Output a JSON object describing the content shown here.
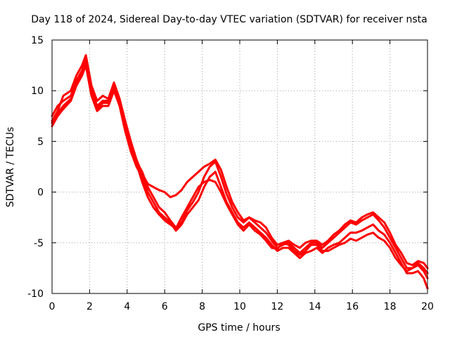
{
  "chart_data": {
    "type": "line",
    "title": "Day 118 of 2024, Sidereal Day-to-day VTEC variation (SDTVAR) for receiver nsta",
    "xlabel": "GPS time / hours",
    "ylabel": "SDTVAR / TECUs",
    "xlim": [
      0,
      20
    ],
    "ylim": [
      -10,
      15
    ],
    "xticks": [
      "0",
      "2",
      "4",
      "6",
      "8",
      "10",
      "12",
      "14",
      "16",
      "18",
      "20"
    ],
    "yticks": [
      "15",
      "10",
      "5",
      "0",
      "-5",
      "-10"
    ],
    "grid": true,
    "legend": "none",
    "series_color": "#ff0000",
    "series": [
      {
        "name": "trace-1",
        "x": [
          0,
          0.3,
          0.6,
          1.0,
          1.3,
          1.6,
          1.8,
          2.1,
          2.4,
          2.7,
          3.0,
          3.3,
          3.6,
          3.9,
          4.2,
          4.5,
          4.8,
          5.1,
          5.4,
          5.7,
          6.0,
          6.3,
          6.6,
          6.9,
          7.2,
          7.5,
          7.8,
          8.1,
          8.4,
          8.7,
          9.0,
          9.3,
          9.6,
          9.9,
          10.2,
          10.5,
          10.8,
          11.1,
          11.4,
          11.7,
          12.0,
          12.3,
          12.6,
          12.9,
          13.2,
          13.5,
          13.8,
          14.1,
          14.4,
          14.7,
          15.0,
          15.3,
          15.6,
          15.9,
          16.2,
          16.5,
          16.8,
          17.1,
          17.4,
          17.7,
          18.0,
          18.3,
          18.6,
          18.9,
          19.2,
          19.5,
          19.8,
          20.0
        ],
        "y": [
          7.5,
          8.5,
          9.0,
          9.5,
          11.0,
          12.0,
          13.0,
          10.0,
          8.5,
          9.0,
          9.0,
          10.5,
          9.0,
          6.5,
          4.5,
          3.0,
          2.0,
          0.5,
          -0.5,
          -1.5,
          -2.0,
          -2.8,
          -3.5,
          -3.0,
          -1.8,
          -1.0,
          0.0,
          1.5,
          2.5,
          3.0,
          1.5,
          -0.2,
          -1.5,
          -2.5,
          -3.0,
          -2.5,
          -3.0,
          -3.5,
          -4.0,
          -4.8,
          -5.5,
          -5.2,
          -5.0,
          -5.5,
          -6.0,
          -5.5,
          -5.0,
          -5.0,
          -5.5,
          -5.0,
          -4.5,
          -4.0,
          -3.5,
          -3.0,
          -3.2,
          -2.8,
          -2.5,
          -2.2,
          -2.8,
          -3.5,
          -4.5,
          -5.5,
          -6.5,
          -7.5,
          -7.5,
          -7.0,
          -7.5,
          -8.0
        ]
      },
      {
        "name": "trace-2",
        "x": [
          0,
          0.3,
          0.6,
          1.0,
          1.3,
          1.6,
          1.8,
          2.1,
          2.4,
          2.7,
          3.0,
          3.3,
          3.6,
          3.9,
          4.2,
          4.5,
          4.8,
          5.1,
          5.4,
          5.7,
          6.0,
          6.3,
          6.6,
          6.9,
          7.2,
          7.5,
          7.8,
          8.1,
          8.4,
          8.7,
          9.0,
          9.3,
          9.6,
          9.9,
          10.2,
          10.5,
          10.8,
          11.1,
          11.4,
          11.7,
          12.0,
          12.3,
          12.6,
          12.9,
          13.2,
          13.5,
          13.8,
          14.1,
          14.4,
          14.7,
          15.0,
          15.3,
          15.6,
          15.9,
          16.2,
          16.5,
          16.8,
          17.1,
          17.4,
          17.7,
          18.0,
          18.3,
          18.6,
          18.9,
          19.2,
          19.5,
          19.8,
          20.0
        ],
        "y": [
          6.5,
          7.5,
          8.2,
          9.0,
          10.5,
          11.5,
          12.5,
          9.5,
          8.0,
          8.5,
          8.5,
          10.0,
          8.5,
          6.0,
          4.0,
          2.5,
          1.5,
          0.0,
          -1.0,
          -2.0,
          -2.5,
          -3.0,
          -3.8,
          -3.2,
          -2.2,
          -1.5,
          -0.8,
          0.5,
          1.5,
          2.0,
          0.5,
          -1.0,
          -2.0,
          -3.0,
          -3.5,
          -3.0,
          -3.5,
          -4.0,
          -4.5,
          -5.2,
          -5.8,
          -5.5,
          -5.5,
          -6.0,
          -6.5,
          -6.0,
          -5.8,
          -5.5,
          -6.0,
          -5.5,
          -5.2,
          -5.0,
          -4.5,
          -4.0,
          -4.0,
          -3.8,
          -3.5,
          -3.2,
          -3.8,
          -4.2,
          -5.0,
          -6.0,
          -7.0,
          -8.0,
          -8.0,
          -7.8,
          -8.5,
          -9.5
        ]
      },
      {
        "name": "trace-3",
        "x": [
          0,
          0.3,
          0.6,
          1.0,
          1.3,
          1.6,
          1.8,
          2.1,
          2.4,
          2.7,
          3.0,
          3.3,
          3.6,
          3.9,
          4.2,
          4.5,
          4.8,
          5.1,
          5.4,
          5.7,
          6.0,
          6.3,
          6.6,
          6.9,
          7.2,
          7.5,
          7.8,
          8.1,
          8.4,
          8.7,
          9.0,
          9.3,
          9.6,
          9.9,
          10.2,
          10.5,
          10.8,
          11.1,
          11.4,
          11.7,
          12.0,
          12.3,
          12.6,
          12.9,
          13.2,
          13.5,
          13.8,
          14.1,
          14.4,
          14.7,
          15.0,
          15.3,
          15.6,
          15.9,
          16.2,
          16.5,
          16.8,
          17.1,
          17.4,
          17.7,
          18.0,
          18.3,
          18.6,
          18.9,
          19.2,
          19.5,
          19.8,
          20.0
        ],
        "y": [
          7.0,
          8.0,
          9.5,
          10.0,
          11.5,
          12.5,
          13.5,
          10.5,
          9.0,
          9.5,
          9.2,
          10.8,
          9.2,
          7.0,
          5.0,
          3.2,
          1.8,
          0.8,
          0.5,
          0.2,
          0.0,
          -0.5,
          -0.3,
          0.2,
          1.0,
          1.5,
          2.0,
          2.5,
          2.8,
          3.2,
          2.2,
          0.5,
          -1.0,
          -2.0,
          -2.8,
          -2.5,
          -2.8,
          -3.0,
          -3.5,
          -4.5,
          -5.2,
          -5.0,
          -4.8,
          -5.2,
          -5.5,
          -5.0,
          -4.8,
          -4.8,
          -5.2,
          -4.8,
          -4.2,
          -3.8,
          -3.2,
          -2.8,
          -3.0,
          -2.5,
          -2.2,
          -2.0,
          -2.5,
          -3.0,
          -4.0,
          -5.2,
          -6.0,
          -7.0,
          -7.2,
          -6.8,
          -7.0,
          -7.5
        ]
      },
      {
        "name": "trace-4",
        "x": [
          0,
          0.3,
          0.6,
          1.0,
          1.3,
          1.6,
          1.8,
          2.1,
          2.4,
          2.7,
          3.0,
          3.3,
          3.6,
          3.9,
          4.2,
          4.5,
          4.8,
          5.1,
          5.4,
          5.7,
          6.0,
          6.3,
          6.6,
          6.9,
          7.2,
          7.5,
          7.8,
          8.1,
          8.4,
          8.7,
          9.0,
          9.3,
          9.6,
          9.9,
          10.2,
          10.5,
          10.8,
          11.1,
          11.4,
          11.7,
          12.0,
          12.3,
          12.6,
          12.9,
          13.2,
          13.5,
          13.8,
          14.1,
          14.4,
          14.7,
          15.0,
          15.3,
          15.6,
          15.9,
          16.2,
          16.5,
          16.8,
          17.1,
          17.4,
          17.7,
          18.0,
          18.3,
          18.6,
          18.9,
          19.2,
          19.5,
          19.8,
          20.0
        ],
        "y": [
          6.8,
          7.8,
          8.5,
          9.2,
          10.8,
          11.8,
          12.8,
          9.8,
          8.2,
          8.8,
          8.8,
          10.2,
          8.8,
          6.2,
          4.2,
          2.8,
          1.0,
          -0.5,
          -1.5,
          -2.2,
          -2.8,
          -3.2,
          -3.6,
          -2.5,
          -1.5,
          -0.5,
          0.5,
          1.0,
          1.2,
          1.0,
          0.0,
          -1.2,
          -2.2,
          -3.2,
          -3.8,
          -3.2,
          -3.8,
          -4.2,
          -4.8,
          -5.5,
          -5.6,
          -5.0,
          -5.2,
          -5.8,
          -6.2,
          -5.8,
          -5.2,
          -5.2,
          -5.8,
          -5.8,
          -5.5,
          -5.2,
          -5.0,
          -4.6,
          -4.8,
          -4.5,
          -4.2,
          -4.0,
          -4.5,
          -4.8,
          -5.5,
          -6.5,
          -7.2,
          -7.8,
          -7.5,
          -7.2,
          -7.8,
          -8.5
        ]
      }
    ]
  }
}
